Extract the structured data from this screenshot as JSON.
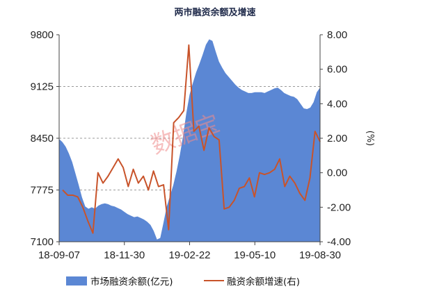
{
  "chart_data": {
    "type": "area+line",
    "title": "两市融资余额及增速",
    "watermark": "数据宝",
    "y_left": {
      "ticks": [
        "9800",
        "9125",
        "8450",
        "7775",
        "7100"
      ],
      "range": [
        7100,
        9800
      ]
    },
    "y_right": {
      "ticks": [
        "8.00",
        "6.00",
        "4.00",
        "2.00",
        "0.00",
        "-2.00",
        "-4.00"
      ],
      "range": [
        -4,
        8
      ],
      "label": "(%)"
    },
    "x_ticks": [
      "18-09-07",
      "18-11-30",
      "19-02-22",
      "19-05-10",
      "19-08-30"
    ],
    "grid": true,
    "legend_position": "bottom",
    "series": [
      {
        "name": "市场融资余额(亿元)",
        "type": "area",
        "axis": "left",
        "color": "#5b87d4",
        "values": [
          8440,
          8400,
          8340,
          8250,
          8140,
          7990,
          7840,
          7680,
          7560,
          7530,
          7550,
          7530,
          7570,
          7590,
          7600,
          7590,
          7570,
          7560,
          7540,
          7520,
          7490,
          7460,
          7440,
          7420,
          7430,
          7410,
          7390,
          7360,
          7320,
          7240,
          7130,
          7150,
          7350,
          7560,
          7700,
          7840,
          8020,
          8230,
          8480,
          8780,
          9020,
          9170,
          9310,
          9420,
          9540,
          9670,
          9740,
          9720,
          9580,
          9450,
          9370,
          9300,
          9250,
          9200,
          9150,
          9110,
          9080,
          9060,
          9040,
          9040,
          9050,
          9050,
          9050,
          9040,
          9060,
          9080,
          9100,
          9110,
          9080,
          9040,
          9020,
          9000,
          8990,
          8960,
          8900,
          8840,
          8830,
          8850,
          8920,
          9050,
          9110
        ]
      },
      {
        "name": "融资余额增速(右)",
        "type": "line",
        "axis": "right",
        "color": "#c8532a",
        "values": [
          -1.0,
          -1.3,
          -1.3,
          -1.4,
          -2.0,
          -2.8,
          -3.5,
          0.0,
          -0.6,
          -0.2,
          0.3,
          0.8,
          0.3,
          -0.8,
          0.2,
          -0.6,
          -0.2,
          -1.0,
          0.1,
          -0.8,
          -0.7,
          -3.3,
          2.9,
          3.2,
          3.6,
          7.4,
          2.4,
          2.7,
          1.3,
          2.6,
          2.1,
          1.9,
          -2.1,
          -2.0,
          -1.6,
          -0.9,
          -0.8,
          -0.3,
          -1.4,
          0.0,
          -0.1,
          0.0,
          0.2,
          0.8,
          -0.8,
          -0.2,
          -0.6,
          -1.2,
          -1.6,
          -0.3,
          2.4,
          1.8
        ]
      }
    ]
  }
}
